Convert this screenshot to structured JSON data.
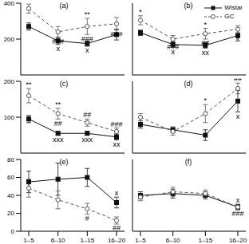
{
  "chart_data": [
    {
      "type": "line",
      "title": "(a)",
      "categories": [
        "1–5",
        "6–10",
        "1–15",
        "16–20"
      ],
      "ylim": [
        0,
        400
      ],
      "yticks": [
        0,
        200,
        400
      ],
      "tick_labels": "y",
      "series": [
        {
          "name": "Wistar",
          "color": "#111111",
          "line_style": "solid",
          "marker": "square",
          "values": [
            270,
            190,
            175,
            225
          ],
          "errors": [
            20,
            20,
            15,
            30
          ]
        },
        {
          "name": "GC",
          "color": "#555555",
          "line_style": "dashed",
          "marker": "circle",
          "values": [
            370,
            240,
            270,
            285
          ],
          "errors": [
            25,
            30,
            45,
            35
          ]
        }
      ],
      "annotations": [
        {
          "series": "GC",
          "index": 0,
          "text": "**",
          "side": "above"
        },
        {
          "series": "GC",
          "index": 1,
          "text": "###",
          "side": "below"
        },
        {
          "series": "Wistar",
          "index": 1,
          "text": "x",
          "side": "below"
        },
        {
          "series": "GC",
          "index": 2,
          "text": "**",
          "side": "above"
        },
        {
          "series": "GC",
          "index": 2,
          "text": "###",
          "side": "below"
        },
        {
          "series": "Wistar",
          "index": 2,
          "text": "x",
          "side": "below"
        },
        {
          "series": "GC",
          "index": 3,
          "text": "###",
          "side": "below"
        }
      ]
    },
    {
      "type": "line",
      "title": "(b)",
      "categories": [
        "1–5",
        "6–10",
        "1–15",
        "16–20"
      ],
      "ylim": [
        0,
        400
      ],
      "yticks": [
        0,
        200,
        400
      ],
      "tick_labels": false,
      "legend": "upper right",
      "series": [
        {
          "name": "Wistar",
          "color": "#111111",
          "line_style": "solid",
          "marker": "square",
          "values": [
            235,
            170,
            165,
            220
          ],
          "errors": [
            15,
            15,
            15,
            30
          ]
        },
        {
          "name": "GC",
          "color": "#555555",
          "line_style": "dashed",
          "marker": "circle",
          "values": [
            305,
            200,
            230,
            255
          ],
          "errors": [
            25,
            20,
            30,
            20
          ]
        }
      ],
      "annotations": [
        {
          "series": "GC",
          "index": 0,
          "text": "*",
          "side": "above"
        },
        {
          "series": "GC",
          "index": 1,
          "text": "###",
          "side": "below"
        },
        {
          "series": "Wistar",
          "index": 1,
          "text": "x",
          "side": "below"
        },
        {
          "series": "GC",
          "index": 2,
          "text": "*",
          "side": "above"
        },
        {
          "series": "GC",
          "index": 2,
          "text": "##",
          "side": "below"
        },
        {
          "series": "Wistar",
          "index": 2,
          "text": "xx",
          "side": "below"
        },
        {
          "series": "GC",
          "index": 3,
          "text": "#",
          "side": "below"
        }
      ]
    },
    {
      "type": "line",
      "title": "(c)",
      "categories": [
        "1–5",
        "6–10",
        "1–15",
        "16–20"
      ],
      "ylim": [
        0,
        200
      ],
      "yticks": [
        0,
        100,
        200
      ],
      "tick_labels": "y",
      "series": [
        {
          "name": "Wistar",
          "color": "#111111",
          "line_style": "solid",
          "marker": "square",
          "values": [
            95,
            55,
            55,
            45
          ],
          "errors": [
            10,
            5,
            5,
            8
          ]
        },
        {
          "name": "GC",
          "color": "#555555",
          "line_style": "dashed",
          "marker": "circle",
          "values": [
            160,
            110,
            85,
            60
          ],
          "errors": [
            20,
            15,
            10,
            10
          ]
        }
      ],
      "annotations": [
        {
          "series": "GC",
          "index": 0,
          "text": "**",
          "side": "above"
        },
        {
          "series": "GC",
          "index": 1,
          "text": "**",
          "side": "above"
        },
        {
          "series": "GC",
          "index": 1,
          "text": "##",
          "side": "below"
        },
        {
          "series": "Wistar",
          "index": 1,
          "text": "xxx",
          "side": "below"
        },
        {
          "series": "GC",
          "index": 2,
          "text": "##",
          "side": "above"
        },
        {
          "series": "Wistar",
          "index": 2,
          "text": "xxx",
          "side": "below"
        },
        {
          "series": "GC",
          "index": 3,
          "text": "###",
          "side": "above"
        },
        {
          "series": "Wistar",
          "index": 3,
          "text": "xx",
          "side": "below"
        }
      ]
    },
    {
      "type": "line",
      "title": "(d)",
      "categories": [
        "1–5",
        "6–10",
        "1–15",
        "16–20"
      ],
      "ylim": [
        0,
        200
      ],
      "yticks": [
        0,
        100,
        200
      ],
      "tick_labels": false,
      "series": [
        {
          "name": "Wistar",
          "color": "#111111",
          "line_style": "solid",
          "marker": "square",
          "values": [
            80,
            65,
            50,
            145
          ],
          "errors": [
            10,
            8,
            15,
            30
          ]
        },
        {
          "name": "GC",
          "color": "#555555",
          "line_style": "dashed",
          "marker": "circle",
          "values": [
            100,
            60,
            110,
            180
          ],
          "errors": [
            10,
            10,
            25,
            15
          ]
        }
      ],
      "annotations": [
        {
          "series": "GC",
          "index": 2,
          "text": "*",
          "side": "above"
        },
        {
          "series": "GC",
          "index": 3,
          "text": "##",
          "side": "above"
        },
        {
          "series": "Wistar",
          "index": 3,
          "text": "x",
          "side": "below"
        }
      ]
    },
    {
      "type": "line",
      "title": "(e)",
      "categories": [
        "1–5",
        "6–10",
        "1–15",
        "16–20"
      ],
      "ylim": [
        0,
        80
      ],
      "yticks": [
        0,
        20,
        40,
        60,
        80
      ],
      "tick_labels": true,
      "series": [
        {
          "name": "Wistar",
          "color": "#111111",
          "line_style": "solid",
          "marker": "square",
          "values": [
            55,
            58,
            60,
            32
          ],
          "errors": [
            12,
            18,
            10,
            6
          ]
        },
        {
          "name": "GC",
          "color": "#555555",
          "line_style": "dashed",
          "marker": "circle",
          "values": [
            48,
            35,
            25,
            12
          ],
          "errors": [
            10,
            10,
            6,
            4
          ]
        }
      ],
      "annotations": [
        {
          "series": "GC",
          "index": 2,
          "text": "#",
          "side": "below"
        },
        {
          "series": "Wistar",
          "index": 3,
          "text": "x",
          "side": "above"
        },
        {
          "series": "GC",
          "index": 3,
          "text": "##",
          "side": "below"
        }
      ]
    },
    {
      "type": "line",
      "title": "(f)",
      "categories": [
        "1–5",
        "6–10",
        "1–15",
        "16–20"
      ],
      "ylim": [
        0,
        80
      ],
      "yticks": [
        0,
        20,
        40,
        60,
        80
      ],
      "tick_labels": "x",
      "series": [
        {
          "name": "Wistar",
          "color": "#111111",
          "line_style": "solid",
          "marker": "square",
          "values": [
            40,
            42,
            40,
            27
          ],
          "errors": [
            4,
            5,
            4,
            3
          ]
        },
        {
          "name": "GC",
          "color": "#555555",
          "line_style": "dashed",
          "marker": "circle",
          "values": [
            38,
            44,
            42,
            27
          ],
          "errors": [
            4,
            5,
            4,
            3
          ]
        }
      ],
      "annotations": [
        {
          "series": "Wistar",
          "index": 3,
          "text": "x",
          "side": "above"
        },
        {
          "series": "GC",
          "index": 3,
          "text": "###",
          "side": "below"
        }
      ]
    }
  ]
}
